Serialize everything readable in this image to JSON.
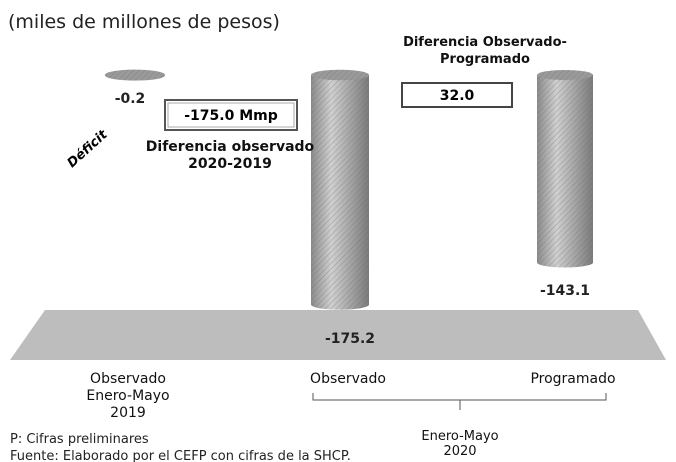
{
  "chart_data": {
    "type": "bar",
    "subtitle": "(miles de millones de pesos)",
    "categories": [
      "Observado Enero-Mayo 2019",
      "Observado",
      "Programado"
    ],
    "values": [
      -0.2,
      -175.2,
      -143.1
    ],
    "color": "#b5b5b5",
    "group_label": "Enero-Mayo 2020",
    "annotations": {
      "deficit": "Déficit",
      "diff_2019": "-175.0 Mmp",
      "diff_2019_label": "Diferencia observado 2020-2019",
      "diff_prog_label": "Diferencia Observado-Programado",
      "diff_prog": "32.0"
    },
    "notes": [
      "P: Cifras preliminares",
      "Fuente: Elaborado por el CEFP con cifras de la SHCP."
    ]
  }
}
